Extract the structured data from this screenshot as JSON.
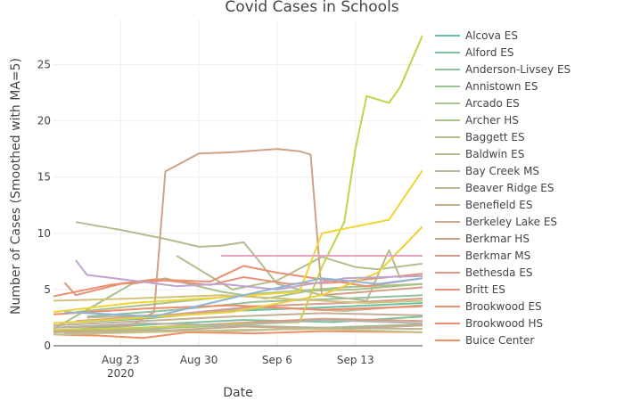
{
  "chart_data": {
    "type": "line",
    "title": "Covid Cases in Schools",
    "xlabel": "Date",
    "ylabel": "Number of Cases (Smoothed with MA=5)",
    "xlim": [
      "2020-08-17",
      "2020-09-19"
    ],
    "ylim": [
      0,
      29
    ],
    "x_ticks": [
      {
        "date": "2020-08-23",
        "label": "Aug 23",
        "sublabel": "2020"
      },
      {
        "date": "2020-08-30",
        "label": "Aug 30",
        "sublabel": ""
      },
      {
        "date": "2020-09-06",
        "label": "Sep 6",
        "sublabel": ""
      },
      {
        "date": "2020-09-13",
        "label": "Sep 13",
        "sublabel": ""
      }
    ],
    "y_ticks": [
      0,
      5,
      10,
      15,
      20,
      25
    ],
    "grid": true,
    "legend_position": "right",
    "series": [
      {
        "name": "Alcova ES",
        "color": "#66c2a5",
        "points": [
          [
            "2020-08-17",
            2.0
          ],
          [
            "2020-08-25",
            2.4
          ],
          [
            "2020-09-02",
            3.1
          ],
          [
            "2020-09-10",
            3.4
          ],
          [
            "2020-09-19",
            3.8
          ]
        ]
      },
      {
        "name": "Alford ES",
        "color": "#7cc2a0",
        "points": [
          [
            "2020-08-18",
            1.4
          ],
          [
            "2020-08-26",
            1.9
          ],
          [
            "2020-09-03",
            2.3
          ],
          [
            "2020-09-11",
            2.1
          ],
          [
            "2020-09-19",
            2.6
          ]
        ]
      },
      {
        "name": "Anderson-Livsey ES",
        "color": "#8fc29b",
        "points": [
          [
            "2020-08-20",
            2.6
          ],
          [
            "2020-08-28",
            3.2
          ],
          [
            "2020-09-04",
            3.9
          ],
          [
            "2020-09-12",
            4.2
          ],
          [
            "2020-09-19",
            4.5
          ]
        ]
      },
      {
        "name": "Annistown ES",
        "color": "#9cc196",
        "points": [
          [
            "2020-08-17",
            1.2
          ],
          [
            "2020-08-25",
            1.5
          ],
          [
            "2020-09-02",
            1.8
          ],
          [
            "2020-09-10",
            1.6
          ],
          [
            "2020-09-19",
            1.9
          ]
        ]
      },
      {
        "name": "Arcado ES",
        "color": "#a6c291",
        "points": [
          [
            "2020-08-19",
            3.0
          ],
          [
            "2020-08-27",
            3.8
          ],
          [
            "2020-09-04",
            4.6
          ],
          [
            "2020-09-12",
            5.2
          ],
          [
            "2020-09-19",
            5.5
          ]
        ]
      },
      {
        "name": "Archer HS",
        "color": "#a9c08a",
        "points": [
          [
            "2020-08-17",
            1.5
          ],
          [
            "2020-08-20",
            3.2
          ],
          [
            "2020-08-24",
            5.5
          ],
          [
            "2020-08-27",
            6.0
          ],
          [
            "2020-09-01",
            4.8
          ],
          [
            "2020-09-05",
            4.2
          ],
          [
            "2020-09-09",
            4.9
          ],
          [
            "2020-09-13",
            5.0
          ],
          [
            "2020-09-19",
            5.5
          ]
        ]
      },
      {
        "name": "Baggett ES",
        "color": "#b1bf8c",
        "points": [
          [
            "2020-08-28",
            8.0
          ],
          [
            "2020-09-02",
            5.0
          ],
          [
            "2020-09-06",
            5.8
          ],
          [
            "2020-09-10",
            7.9
          ],
          [
            "2020-09-13",
            7.0
          ],
          [
            "2020-09-15",
            6.8
          ],
          [
            "2020-09-19",
            7.3
          ]
        ]
      },
      {
        "name": "Baldwin ES",
        "color": "#b5bb91",
        "points": [
          [
            "2020-08-19",
            11.0
          ],
          [
            "2020-08-23",
            10.3
          ],
          [
            "2020-08-27",
            9.5
          ],
          [
            "2020-08-30",
            8.8
          ],
          [
            "2020-09-01",
            8.9
          ],
          [
            "2020-09-03",
            9.2
          ],
          [
            "2020-09-04",
            8.0
          ],
          [
            "2020-09-06",
            5.5
          ],
          [
            "2020-09-10",
            4.5
          ],
          [
            "2020-09-14",
            4.0
          ],
          [
            "2020-09-16",
            8.5
          ],
          [
            "2020-09-17",
            6.0
          ]
        ]
      },
      {
        "name": "Bay Creek MS",
        "color": "#bab896",
        "points": [
          [
            "2020-08-17",
            1.2
          ],
          [
            "2020-08-25",
            1.4
          ],
          [
            "2020-09-02",
            1.3
          ],
          [
            "2020-09-10",
            1.6
          ],
          [
            "2020-09-19",
            1.5
          ]
        ]
      },
      {
        "name": "Beaver Ridge ES",
        "color": "#c0b494",
        "points": [
          [
            "2020-08-20",
            2.5
          ],
          [
            "2020-08-28",
            2.8
          ],
          [
            "2020-09-05",
            3.4
          ],
          [
            "2020-09-12",
            3.1
          ],
          [
            "2020-09-19",
            3.6
          ]
        ]
      },
      {
        "name": "Benefield ES",
        "color": "#c6ae92",
        "points": [
          [
            "2020-08-17",
            1.8
          ],
          [
            "2020-08-25",
            2.2
          ],
          [
            "2020-09-02",
            2.6
          ],
          [
            "2020-09-10",
            2.9
          ],
          [
            "2020-09-19",
            2.7
          ]
        ]
      },
      {
        "name": "Berkeley Lake ES",
        "color": "#cba88f",
        "points": [
          [
            "2020-08-18",
            1.1
          ],
          [
            "2020-08-26",
            1.3
          ],
          [
            "2020-09-03",
            1.7
          ],
          [
            "2020-09-11",
            1.5
          ],
          [
            "2020-09-19",
            1.8
          ]
        ]
      },
      {
        "name": "Berkmar HS",
        "color": "#d0a186",
        "points": [
          [
            "2020-08-17",
            1.6
          ],
          [
            "2020-08-24",
            1.8
          ],
          [
            "2020-08-26",
            3.0
          ],
          [
            "2020-08-27",
            15.5
          ],
          [
            "2020-08-30",
            17.1
          ],
          [
            "2020-09-02",
            17.2
          ],
          [
            "2020-09-06",
            17.5
          ],
          [
            "2020-09-08",
            17.3
          ],
          [
            "2020-09-09",
            17.0
          ],
          [
            "2020-09-10",
            4.5
          ],
          [
            "2020-09-14",
            4.8
          ],
          [
            "2020-09-19",
            5.2
          ]
        ]
      },
      {
        "name": "Berkmar MS",
        "color": "#d69c8f",
        "points": [
          [
            "2020-08-19",
            2.2
          ],
          [
            "2020-08-27",
            2.7
          ],
          [
            "2020-09-04",
            3.5
          ],
          [
            "2020-09-12",
            3.8
          ],
          [
            "2020-09-19",
            4.2
          ]
        ]
      },
      {
        "name": "Bethesda ES",
        "color": "#db9885",
        "points": [
          [
            "2020-08-17",
            1.3
          ],
          [
            "2020-08-25",
            1.6
          ],
          [
            "2020-09-02",
            2.0
          ],
          [
            "2020-09-10",
            2.4
          ],
          [
            "2020-09-19",
            2.2
          ]
        ]
      },
      {
        "name": "Britt ES",
        "color": "#e39478",
        "points": [
          [
            "2020-08-18",
            5.6
          ],
          [
            "2020-08-19",
            4.5
          ],
          [
            "2020-08-23",
            5.5
          ],
          [
            "2020-08-27",
            5.8
          ],
          [
            "2020-08-31",
            5.4
          ],
          [
            "2020-09-03",
            6.1
          ],
          [
            "2020-09-07",
            5.5
          ],
          [
            "2020-09-11",
            5.6
          ],
          [
            "2020-09-15",
            6.0
          ],
          [
            "2020-09-19",
            6.4
          ]
        ]
      },
      {
        "name": "Brookwood ES",
        "color": "#ea8f70",
        "points": [
          [
            "2020-08-17",
            4.4
          ],
          [
            "2020-08-22",
            5.4
          ],
          [
            "2020-08-26",
            5.9
          ],
          [
            "2020-08-31",
            5.7
          ],
          [
            "2020-09-03",
            7.1
          ],
          [
            "2020-09-06",
            6.5
          ],
          [
            "2020-09-10",
            5.9
          ],
          [
            "2020-09-14",
            5.3
          ],
          [
            "2020-09-19",
            6.0
          ]
        ]
      },
      {
        "name": "Brookwood HS",
        "color": "#ee8c6a",
        "points": [
          [
            "2020-08-17",
            2.8
          ],
          [
            "2020-08-25",
            3.3
          ],
          [
            "2020-09-02",
            3.6
          ],
          [
            "2020-09-10",
            3.2
          ],
          [
            "2020-09-19",
            3.5
          ]
        ]
      },
      {
        "name": "Buice Center",
        "color": "#f28e64",
        "points": [
          [
            "2020-08-17",
            1.0
          ],
          [
            "2020-08-21",
            0.9
          ],
          [
            "2020-08-25",
            0.7
          ],
          [
            "2020-08-29",
            1.2
          ],
          [
            "2020-09-04",
            1.1
          ],
          [
            "2020-09-10",
            1.3
          ],
          [
            "2020-09-19",
            1.2
          ]
        ]
      },
      {
        "name": "",
        "color": "#c6d14a",
        "points": [
          [
            "2020-08-17",
            1.4
          ],
          [
            "2020-08-25",
            1.6
          ],
          [
            "2020-09-02",
            1.9
          ],
          [
            "2020-09-08",
            2.1
          ],
          [
            "2020-09-10",
            7.0
          ],
          [
            "2020-09-12",
            11.0
          ],
          [
            "2020-09-13",
            17.5
          ],
          [
            "2020-09-14",
            22.2
          ],
          [
            "2020-09-16",
            21.6
          ],
          [
            "2020-09-17",
            23.0
          ],
          [
            "2020-09-19",
            27.6
          ]
        ]
      },
      {
        "name": "",
        "color": "#eed632",
        "points": [
          [
            "2020-08-17",
            3.0
          ],
          [
            "2020-08-24",
            3.8
          ],
          [
            "2020-09-01",
            4.3
          ],
          [
            "2020-09-08",
            4.8
          ],
          [
            "2020-09-10",
            10.0
          ],
          [
            "2020-09-13",
            10.6
          ],
          [
            "2020-09-16",
            11.2
          ],
          [
            "2020-09-19",
            15.6
          ]
        ]
      },
      {
        "name": "",
        "color": "#f0cf38",
        "points": [
          [
            "2020-08-17",
            2.0
          ],
          [
            "2020-08-25",
            2.5
          ],
          [
            "2020-09-02",
            3.0
          ],
          [
            "2020-09-10",
            4.5
          ],
          [
            "2020-09-15",
            6.5
          ],
          [
            "2020-09-19",
            10.6
          ]
        ]
      },
      {
        "name": "",
        "color": "#c0a4cf",
        "points": [
          [
            "2020-08-19",
            7.6
          ],
          [
            "2020-08-20",
            6.3
          ],
          [
            "2020-08-24",
            5.8
          ],
          [
            "2020-08-28",
            5.3
          ],
          [
            "2020-09-01",
            5.5
          ],
          [
            "2020-09-06",
            5.0
          ],
          [
            "2020-09-12",
            6.0
          ],
          [
            "2020-09-19",
            6.2
          ]
        ]
      },
      {
        "name": "",
        "color": "#e7a2c2",
        "points": [
          [
            "2020-09-01",
            8.0
          ],
          [
            "2020-09-06",
            8.0
          ],
          [
            "2020-09-12",
            8.0
          ],
          [
            "2020-09-19",
            8.0
          ]
        ]
      },
      {
        "name": "",
        "color": "#b5b3a8",
        "points": [
          [
            "2020-08-17",
            1.6
          ],
          [
            "2020-08-25",
            2.0
          ],
          [
            "2020-09-02",
            1.8
          ],
          [
            "2020-09-10",
            2.3
          ],
          [
            "2020-09-19",
            2.0
          ]
        ]
      },
      {
        "name": "",
        "color": "#d3c27c",
        "points": [
          [
            "2020-08-17",
            4.0
          ],
          [
            "2020-08-24",
            4.2
          ],
          [
            "2020-09-01",
            4.5
          ],
          [
            "2020-09-08",
            4.1
          ],
          [
            "2020-09-14",
            3.8
          ],
          [
            "2020-09-19",
            4.0
          ]
        ]
      },
      {
        "name": "",
        "color": "#8db5d6",
        "points": [
          [
            "2020-08-18",
            3.0
          ],
          [
            "2020-08-26",
            2.6
          ],
          [
            "2020-09-03",
            4.5
          ],
          [
            "2020-09-10",
            6.0
          ],
          [
            "2020-09-15",
            5.5
          ],
          [
            "2020-09-19",
            6.0
          ]
        ]
      },
      {
        "name": "",
        "color": "#bfc48c",
        "points": [
          [
            "2020-08-17",
            1.0
          ],
          [
            "2020-08-25",
            1.2
          ],
          [
            "2020-09-02",
            1.4
          ],
          [
            "2020-09-10",
            1.5
          ],
          [
            "2020-09-19",
            1.2
          ]
        ]
      }
    ]
  }
}
